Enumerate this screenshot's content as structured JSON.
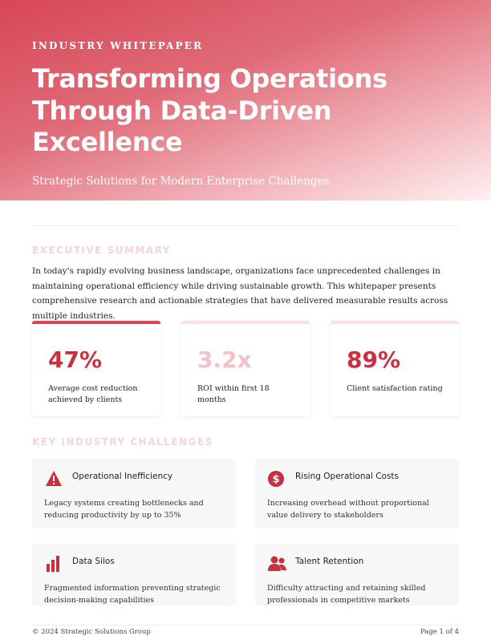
{
  "header": {
    "eyebrow": "INDUSTRY WHITEPAPER",
    "title_lines": [
      "Transforming Operations",
      "Through Data-Driven",
      "Excellence"
    ],
    "subtitle": "Strategic Solutions for Modern Enterprise Challenges"
  },
  "summary": {
    "heading": "EXECUTIVE SUMMARY",
    "text": "In today's rapidly evolving business landscape, organizations face unprecedented challenges in maintaining operational efficiency while driving sustainable growth. This whitepaper presents comprehensive research and actionable strategies that have delivered measurable results across multiple industries."
  },
  "stats": [
    {
      "value": "47%",
      "label": "Average cost reduction achieved by clients"
    },
    {
      "value": "3.2x",
      "label": "ROI within first 18 months"
    },
    {
      "value": "89%",
      "label": "Client satisfaction rating"
    }
  ],
  "challenges": {
    "heading": "KEY INDUSTRY CHALLENGES",
    "items": [
      {
        "title": "Operational Inefficiency",
        "text": "Legacy systems creating bottlenecks and reducing productivity by up to 35%"
      },
      {
        "title": "Rising Operational Costs",
        "text": "Increasing overhead without proportional value delivery to stakeholders"
      },
      {
        "title": "Data Silos",
        "text": "Fragmented information preventing strategic decision-making capabilities"
      },
      {
        "title": "Talent Retention",
        "text": "Difficulty attracting and retaining skilled professionals in competitive markets"
      }
    ]
  },
  "footer": {
    "left": "© 2024 Strategic Solutions Group",
    "right": "Page 1 of 4"
  }
}
